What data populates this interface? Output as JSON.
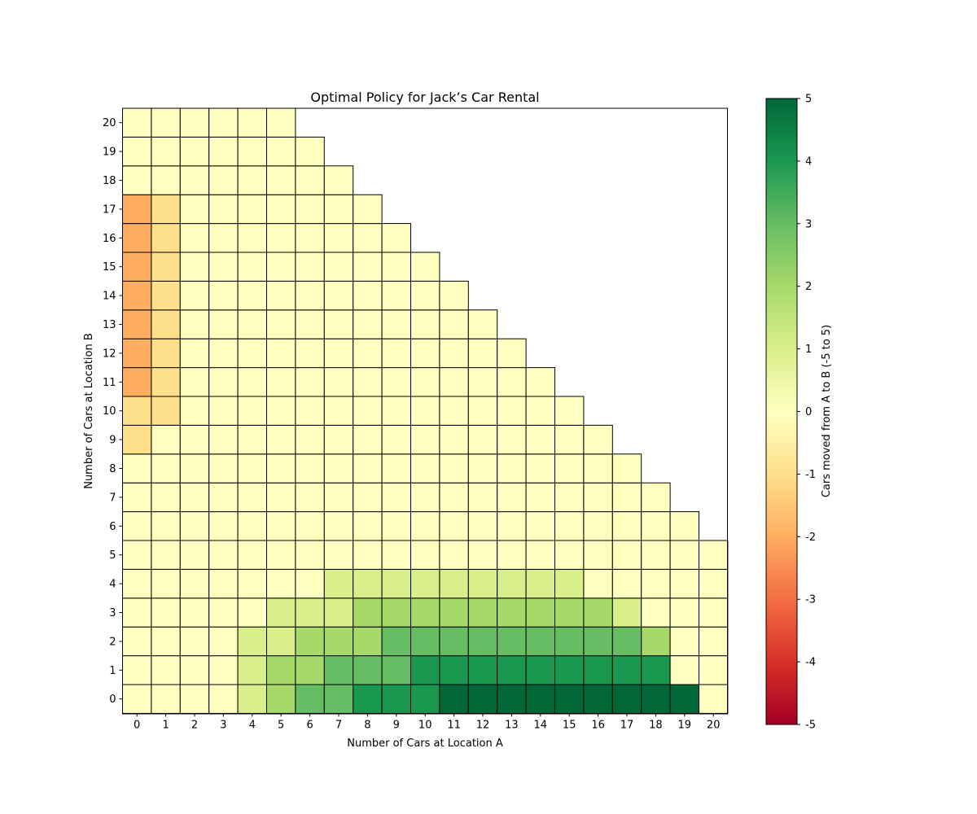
{
  "chart_data": {
    "type": "heatmap",
    "title": "Optimal Policy for Jack’s Car Rental",
    "xlabel": "Number of Cars at Location A",
    "ylabel": "Number of Cars at Location B",
    "colorbar_label": "Cars moved from A to B (-5 to 5)",
    "colormap": "RdYlGn",
    "vmin": -5,
    "vmax": 5,
    "x_ticks": [
      "0",
      "1",
      "2",
      "3",
      "4",
      "5",
      "6",
      "7",
      "8",
      "9",
      "10",
      "11",
      "12",
      "13",
      "14",
      "15",
      "16",
      "17",
      "18",
      "19",
      "20"
    ],
    "y_ticks": [
      "0",
      "1",
      "2",
      "3",
      "4",
      "5",
      "6",
      "7",
      "8",
      "9",
      "10",
      "11",
      "12",
      "13",
      "14",
      "15",
      "16",
      "17",
      "18",
      "19",
      "20"
    ],
    "colorbar_ticks": [
      "-5",
      "-4",
      "-3",
      "-2",
      "-1",
      "0",
      "1",
      "2",
      "3",
      "4",
      "5"
    ],
    "note": "rows indexed by cars at Location B (0..20); each row has values for cars at Location A from 0 up to 25-B (max 20); cells with A+B>25 are empty",
    "values_by_b": [
      [
        0,
        0,
        0,
        0,
        1,
        2,
        3,
        3,
        4,
        4,
        4,
        5,
        5,
        5,
        5,
        5,
        5,
        5,
        5,
        5,
        0
      ],
      [
        0,
        0,
        0,
        0,
        1,
        2,
        2,
        3,
        3,
        3,
        4,
        4,
        4,
        4,
        4,
        4,
        4,
        4,
        4,
        0,
        0
      ],
      [
        0,
        0,
        0,
        0,
        1,
        1,
        2,
        2,
        2,
        3,
        3,
        3,
        3,
        3,
        3,
        3,
        3,
        3,
        2,
        0,
        0
      ],
      [
        0,
        0,
        0,
        0,
        0,
        1,
        1,
        1,
        2,
        2,
        2,
        2,
        2,
        2,
        2,
        2,
        2,
        1,
        0,
        0,
        0
      ],
      [
        0,
        0,
        0,
        0,
        0,
        0,
        0,
        1,
        1,
        1,
        1,
        1,
        1,
        1,
        1,
        1,
        0,
        0,
        0,
        0,
        0
      ],
      [
        0,
        0,
        0,
        0,
        0,
        0,
        0,
        0,
        0,
        0,
        0,
        0,
        0,
        0,
        0,
        0,
        0,
        0,
        0,
        0,
        0
      ],
      [
        0,
        0,
        0,
        0,
        0,
        0,
        0,
        0,
        0,
        0,
        0,
        0,
        0,
        0,
        0,
        0,
        0,
        0,
        0,
        0
      ],
      [
        0,
        0,
        0,
        0,
        0,
        0,
        0,
        0,
        0,
        0,
        0,
        0,
        0,
        0,
        0,
        0,
        0,
        0,
        0
      ],
      [
        0,
        0,
        0,
        0,
        0,
        0,
        0,
        0,
        0,
        0,
        0,
        0,
        0,
        0,
        0,
        0,
        0,
        0
      ],
      [
        -1,
        0,
        0,
        0,
        0,
        0,
        0,
        0,
        0,
        0,
        0,
        0,
        0,
        0,
        0,
        0,
        0
      ],
      [
        -1,
        -1,
        0,
        0,
        0,
        0,
        0,
        0,
        0,
        0,
        0,
        0,
        0,
        0,
        0,
        0
      ],
      [
        -2,
        -1,
        0,
        0,
        0,
        0,
        0,
        0,
        0,
        0,
        0,
        0,
        0,
        0,
        0
      ],
      [
        -2,
        -1,
        0,
        0,
        0,
        0,
        0,
        0,
        0,
        0,
        0,
        0,
        0,
        0
      ],
      [
        -2,
        -1,
        0,
        0,
        0,
        0,
        0,
        0,
        0,
        0,
        0,
        0,
        0
      ],
      [
        -2,
        -1,
        0,
        0,
        0,
        0,
        0,
        0,
        0,
        0,
        0,
        0
      ],
      [
        -2,
        -1,
        0,
        0,
        0,
        0,
        0,
        0,
        0,
        0,
        0
      ],
      [
        -2,
        -1,
        0,
        0,
        0,
        0,
        0,
        0,
        0,
        0
      ],
      [
        -2,
        -1,
        0,
        0,
        0,
        0,
        0,
        0,
        0
      ],
      [
        0,
        0,
        0,
        0,
        0,
        0,
        0,
        0
      ],
      [
        0,
        0,
        0,
        0,
        0,
        0,
        0
      ],
      [
        0,
        0,
        0,
        0,
        0,
        0
      ]
    ]
  }
}
